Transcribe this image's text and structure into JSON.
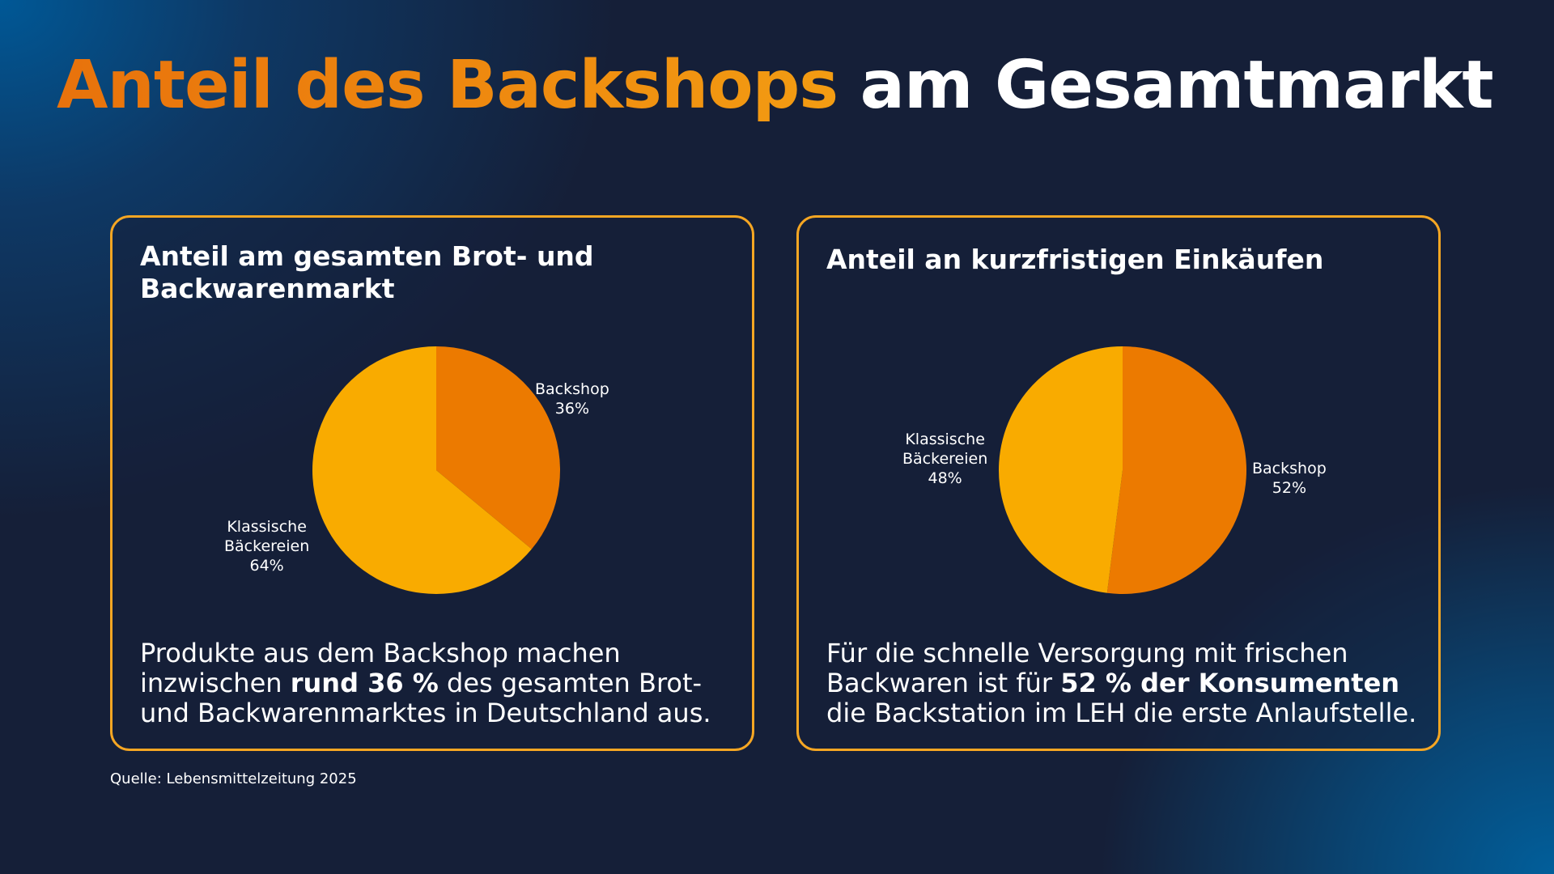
{
  "title": {
    "accent": "Anteil des Backshops",
    "rest": " am Gesamtmarkt"
  },
  "colors": {
    "backshop": "#ec7a00",
    "klassische": "#f9ab00",
    "border": "#f5a623",
    "accent_text": "#f08a0c"
  },
  "cards": [
    {
      "title": "Anteil am gesamten Brot- und Backwarenmarkt",
      "labels": {
        "backshop": [
          "Backshop",
          "36%"
        ],
        "klassische": [
          "Klassische",
          "Bäckereien",
          "64%"
        ]
      },
      "text": {
        "before": "Produkte aus dem Backshop machen inzwischen ",
        "bold": "rund 36 %",
        "after": " des gesamten Brot- und Backwarenmarktes in Deutschland aus."
      }
    },
    {
      "title": "Anteil an kurzfristigen Einkäufen",
      "labels": {
        "backshop": [
          "Backshop",
          "52%"
        ],
        "klassische": [
          "Klassische",
          "Bäckereien",
          "48%"
        ]
      },
      "text": {
        "before": "Für die schnelle Versorgung mit frischen Backwaren ist für ",
        "bold": "52 % der Konsumenten",
        "after": " die Backstation im LEH die erste Anlaufstelle."
      }
    }
  ],
  "source": "Quelle:  Lebensmittelzeitung 2025",
  "chart_data": [
    {
      "type": "pie",
      "title": "Anteil am gesamten Brot- und Backwarenmarkt",
      "categories": [
        "Backshop",
        "Klassische Bäckereien"
      ],
      "values": [
        36,
        64
      ],
      "colors": [
        "#ec7a00",
        "#f9ab00"
      ]
    },
    {
      "type": "pie",
      "title": "Anteil an kurzfristigen Einkäufen",
      "categories": [
        "Backshop",
        "Klassische Bäckereien"
      ],
      "values": [
        52,
        48
      ],
      "colors": [
        "#ec7a00",
        "#f9ab00"
      ]
    }
  ]
}
